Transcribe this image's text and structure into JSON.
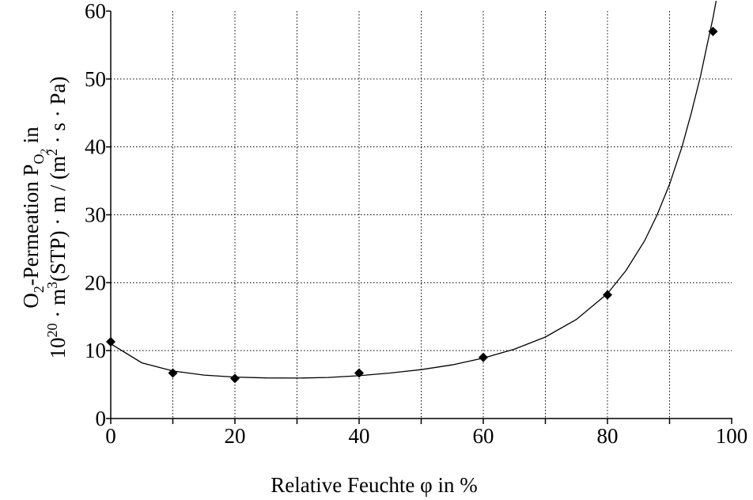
{
  "chart_data": {
    "type": "scatter",
    "x_label": "Relative Feuchte φ in %",
    "y_label": {
      "line1": {
        "prefix": "O",
        "sub1": "2",
        "mid": "-Permeation P",
        "sub2": "O",
        "sub3": "2",
        "suffix": " in"
      },
      "line2": {
        "a": "10",
        "sup1": "20",
        "b": " · m",
        "sup2": "3",
        "c": "(STP) · m / (m",
        "sup3": "2",
        "d": " · s · Pa)"
      }
    },
    "xlim": [
      0,
      100
    ],
    "ylim": [
      0,
      60
    ],
    "x_ticks": [
      0,
      20,
      40,
      60,
      80,
      100
    ],
    "y_ticks": [
      0,
      10,
      20,
      30,
      40,
      50,
      60
    ],
    "x_grid": [
      10,
      20,
      30,
      40,
      50,
      60,
      70,
      80,
      90
    ],
    "y_grid": [
      10,
      20,
      30,
      40,
      50
    ],
    "grid": true,
    "marker": "diamond",
    "points": [
      {
        "x": 0,
        "y": 11.3
      },
      {
        "x": 10,
        "y": 6.7
      },
      {
        "x": 20,
        "y": 5.9
      },
      {
        "x": 40,
        "y": 6.7
      },
      {
        "x": 60,
        "y": 9.0
      },
      {
        "x": 80,
        "y": 18.2
      },
      {
        "x": 97,
        "y": 57.0
      }
    ],
    "fit_curve": [
      [
        0,
        11.0
      ],
      [
        5,
        8.2
      ],
      [
        10,
        7.0
      ],
      [
        15,
        6.4
      ],
      [
        20,
        6.1
      ],
      [
        25,
        5.98
      ],
      [
        30,
        5.95
      ],
      [
        35,
        6.05
      ],
      [
        40,
        6.3
      ],
      [
        45,
        6.7
      ],
      [
        50,
        7.2
      ],
      [
        55,
        7.9
      ],
      [
        60,
        8.9
      ],
      [
        65,
        10.2
      ],
      [
        70,
        12.0
      ],
      [
        75,
        14.6
      ],
      [
        80,
        18.4
      ],
      [
        83,
        21.8
      ],
      [
        86,
        26.2
      ],
      [
        88,
        30.0
      ],
      [
        90,
        34.5
      ],
      [
        92,
        40.0
      ],
      [
        93.5,
        45.0
      ],
      [
        95,
        50.5
      ],
      [
        96,
        54.8
      ],
      [
        97,
        59.0
      ],
      [
        97.5,
        61.5
      ]
    ]
  }
}
